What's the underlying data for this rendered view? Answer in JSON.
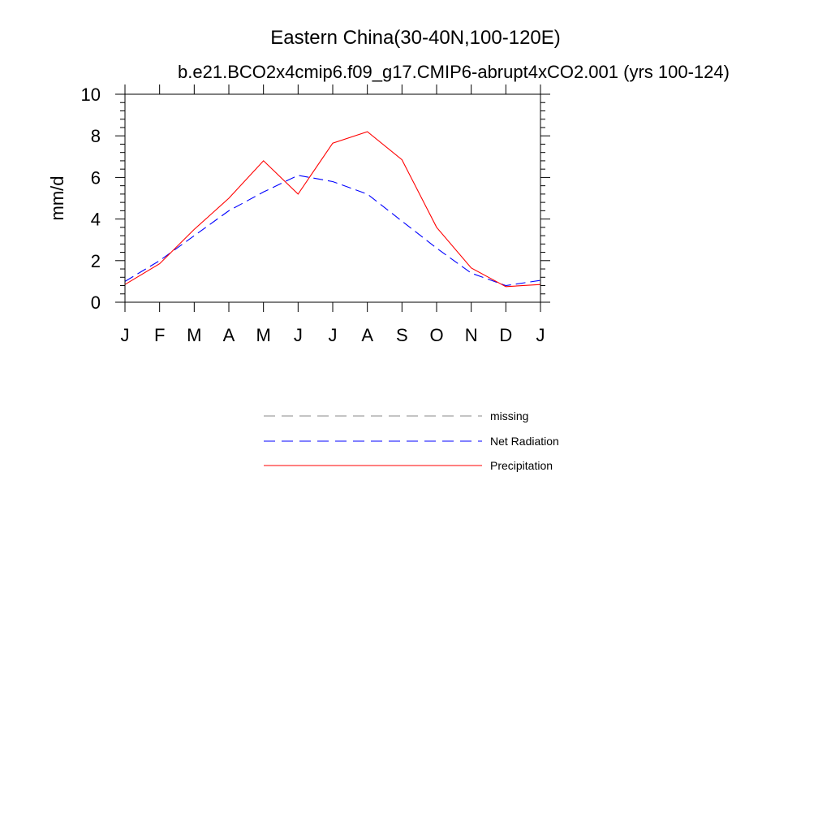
{
  "chart_data": {
    "type": "line",
    "title": "Eastern China(30-40N,100-120E)",
    "subtitle": "b.e21.BCO2x4cmip6.f09_g17.CMIP6-abrupt4xCO2.001 (yrs 100-124)",
    "xlabel": "",
    "ylabel": "mm/d",
    "ylim": [
      0,
      10
    ],
    "y_ticks": [
      "0",
      "2",
      "4",
      "6",
      "8",
      "10"
    ],
    "categories": [
      "J",
      "F",
      "M",
      "A",
      "M",
      "J",
      "J",
      "A",
      "S",
      "O",
      "N",
      "D",
      "J"
    ],
    "series": [
      {
        "name": "Net Radiation",
        "color": "#0000ff",
        "dash": "dashed",
        "values": [
          1.0,
          2.0,
          3.2,
          4.4,
          5.3,
          6.1,
          5.8,
          5.2,
          3.9,
          2.6,
          1.4,
          0.8,
          1.05
        ]
      },
      {
        "name": "Precipitation",
        "color": "#ff0000",
        "dash": "solid",
        "values": [
          0.85,
          1.85,
          3.5,
          5.0,
          6.8,
          5.2,
          7.65,
          8.2,
          6.85,
          3.6,
          1.65,
          0.75,
          0.85
        ]
      }
    ],
    "legend": {
      "placement": "bottom",
      "items": [
        {
          "label": "missing",
          "color": "#888888",
          "dash": "dashed"
        },
        {
          "label": "Net Radiation",
          "color": "#0000ff",
          "dash": "dashed"
        },
        {
          "label": "Precipitation",
          "color": "#ff0000",
          "dash": "solid"
        }
      ]
    }
  }
}
